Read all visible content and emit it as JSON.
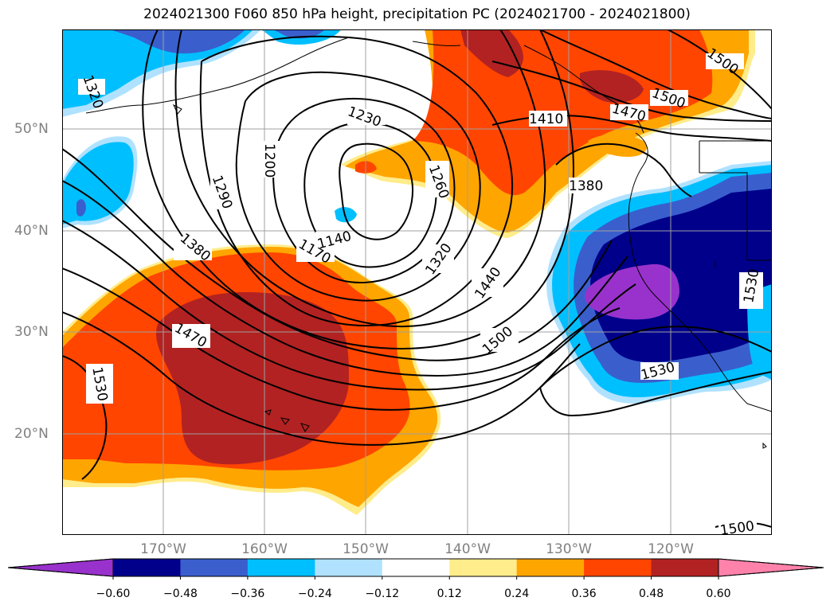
{
  "title": "2024021300 F060 850 hPa height, precipitation PC (2024021700 - 2024021800)",
  "lat_labels": [
    "50°N",
    "40°N",
    "30°N",
    "20°N"
  ],
  "lon_labels": [
    "170°W",
    "160°W",
    "150°W",
    "140°W",
    "130°W",
    "120°W"
  ],
  "colorbar": {
    "ticks": [
      "−0.60",
      "−0.48",
      "−0.36",
      "−0.24",
      "−0.12",
      "0.12",
      "0.24",
      "0.36",
      "0.48",
      "0.60"
    ],
    "colors": [
      "#9932cc",
      "#00008b",
      "#3a5fcd",
      "#00bfff",
      "#b0e2ff",
      "#ffffff",
      "#ffec8b",
      "#ffa500",
      "#ff4500",
      "#b22222",
      "#ff82ab"
    ]
  },
  "contour_labels": [
    "1320",
    "1230",
    "1200",
    "1290",
    "1260",
    "1410",
    "1470",
    "1500",
    "1500",
    "1380",
    "1140",
    "1170",
    "1380",
    "1320",
    "1440",
    "1470",
    "1500",
    "1530",
    "1530",
    "1530",
    "1500"
  ],
  "colors": {
    "contour": "#000000",
    "grid": "#a0a0a0",
    "coast": "#000000"
  }
}
